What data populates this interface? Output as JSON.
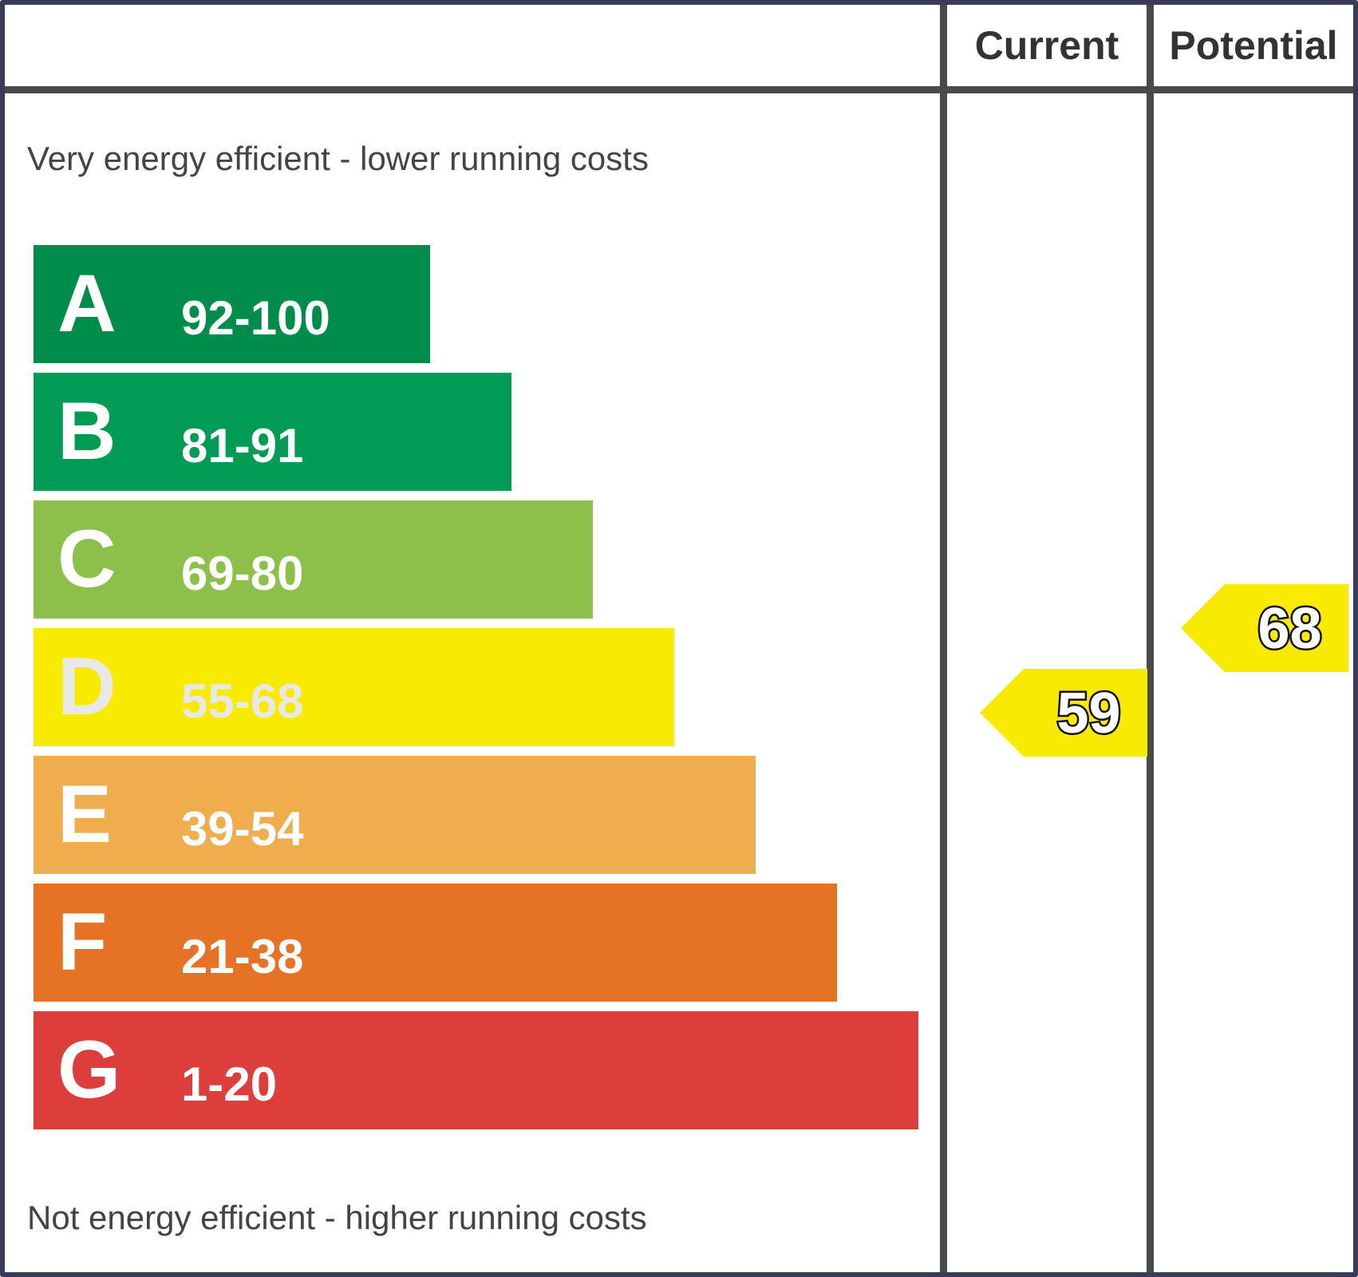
{
  "chart_data": {
    "type": "bar",
    "columns": {
      "current_label": "Current",
      "potential_label": "Potential"
    },
    "captions": {
      "top": "Very energy efficient - lower running costs",
      "bottom": "Not energy efficient - higher running costs"
    },
    "bands": [
      {
        "letter": "A",
        "range": "92-100",
        "min": 92,
        "max": 100,
        "color": "#008c4a"
      },
      {
        "letter": "B",
        "range": "81-91",
        "min": 81,
        "max": 91,
        "color": "#009b55"
      },
      {
        "letter": "C",
        "range": "69-80",
        "min": 69,
        "max": 80,
        "color": "#8cc04a"
      },
      {
        "letter": "D",
        "range": "55-68",
        "min": 55,
        "max": 68,
        "color": "#f8ea00"
      },
      {
        "letter": "E",
        "range": "39-54",
        "min": 39,
        "max": 54,
        "color": "#efad4e"
      },
      {
        "letter": "F",
        "range": "21-38",
        "min": 21,
        "max": 38,
        "color": "#e67325"
      },
      {
        "letter": "G",
        "range": "1-20",
        "min": 1,
        "max": 20,
        "color": "#dd3e3c"
      }
    ],
    "ratings": {
      "current": {
        "value": 59,
        "band": "D",
        "color": "#f8ea00"
      },
      "potential": {
        "value": 68,
        "band": "D",
        "color": "#f8ea00"
      }
    }
  }
}
